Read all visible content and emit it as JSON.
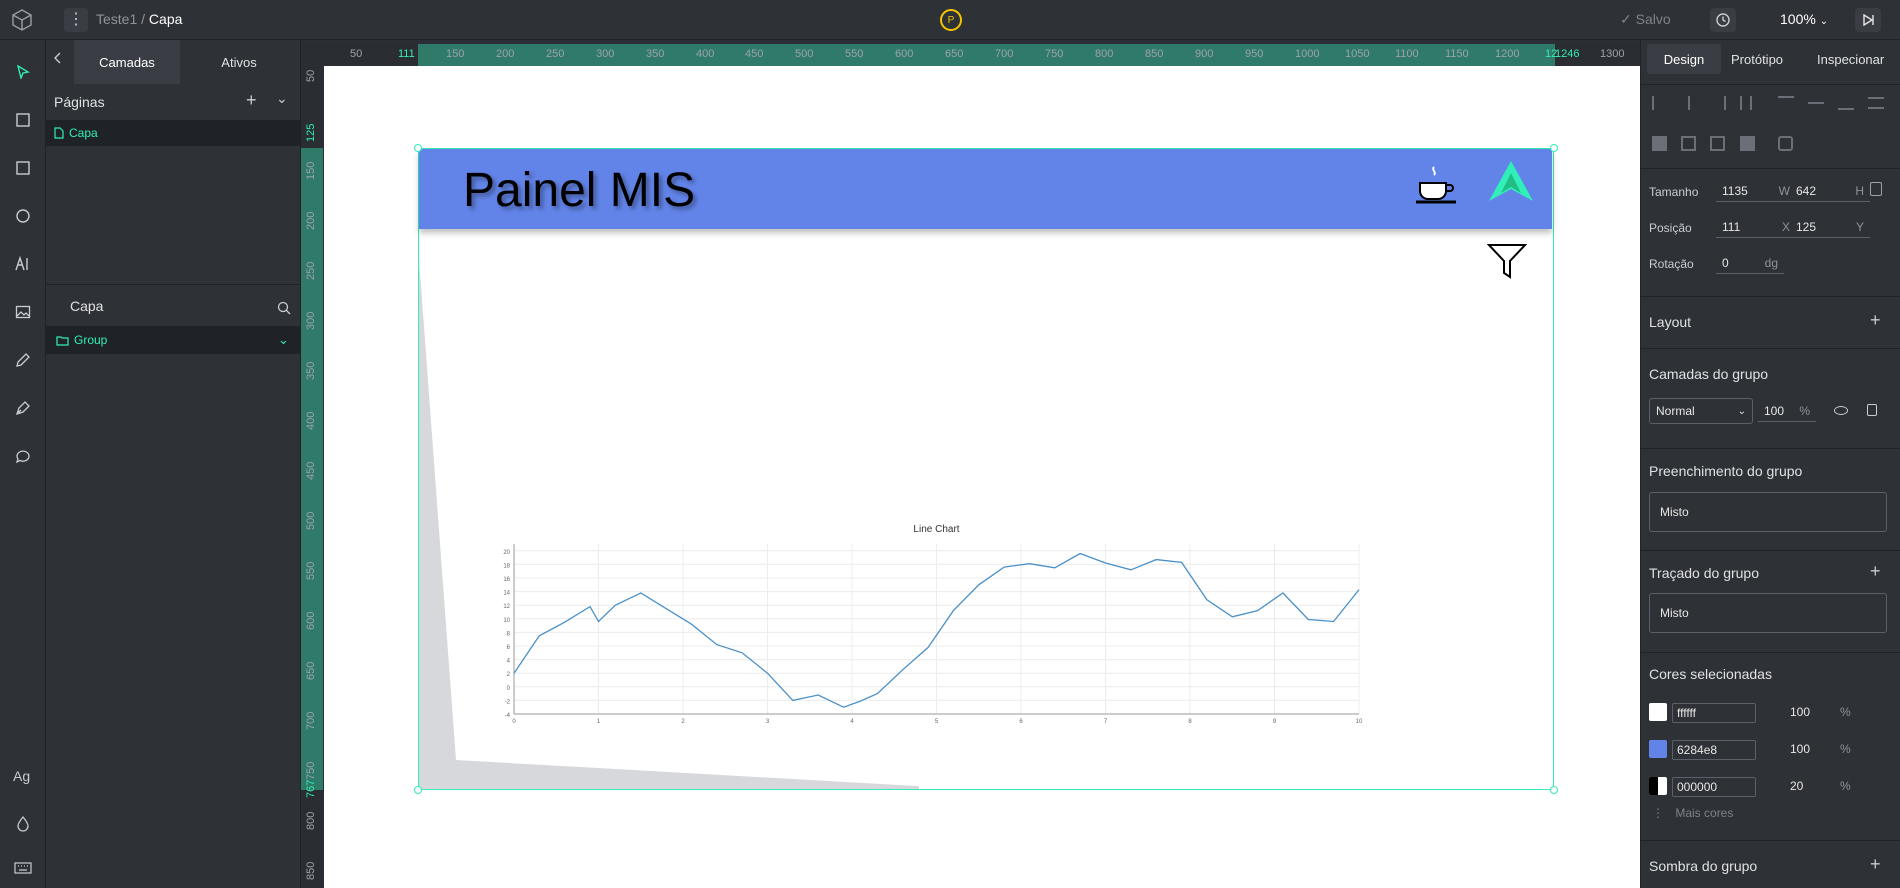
{
  "app": {
    "breadcrumb": {
      "project": "Teste1",
      "sep": "/",
      "page": "Capa"
    },
    "status": {
      "check": "✓",
      "saved": "Salvo"
    },
    "zoom": "100%",
    "avatar": "P"
  },
  "layers_panel": {
    "tabs": [
      "Camadas",
      "Ativos"
    ],
    "pages_title": "Páginas",
    "pages": [
      "Capa"
    ],
    "layers_title": "Capa",
    "layers": [
      "Group"
    ]
  },
  "rulers": {
    "h_ticks": [
      "50",
      "111",
      "150",
      "200",
      "250",
      "300",
      "350",
      "400",
      "450",
      "500",
      "550",
      "600",
      "650",
      "700",
      "750",
      "800",
      "850",
      "900",
      "950",
      "1000",
      "1050",
      "1100",
      "1150",
      "1200",
      "12",
      "1246",
      "1300"
    ],
    "v_ticks": [
      "50",
      "125",
      "150",
      "200",
      "250",
      "300",
      "350",
      "400",
      "450",
      "500",
      "550",
      "600",
      "650",
      "700",
      "750",
      "767",
      "800",
      "850"
    ]
  },
  "canvas": {
    "board_title": "Painel MIS",
    "header_color": "#6284e8",
    "chart_data": {
      "type": "line",
      "title": "Line Chart",
      "xlabel": "",
      "ylabel": "",
      "xlim": [
        0,
        10
      ],
      "ylim": [
        -4,
        21
      ],
      "x_ticks": [
        "0",
        "1",
        "2",
        "3",
        "4",
        "5",
        "6",
        "7",
        "8",
        "9",
        "10"
      ],
      "y_ticks": [
        "20",
        "18",
        "16",
        "14",
        "12",
        "10",
        "8",
        "6",
        "4",
        "2",
        "0",
        "-2",
        "-4"
      ],
      "grid": true,
      "series": [
        {
          "color": "#4a90c8",
          "x": [
            0,
            0.3,
            0.6,
            0.9,
            1.0,
            1.2,
            1.5,
            1.8,
            2.1,
            2.4,
            2.7,
            3.0,
            3.3,
            3.6,
            3.9,
            4.1,
            4.3,
            4.6,
            4.9,
            5.2,
            5.5,
            5.8,
            6.1,
            6.4,
            6.7,
            7.0,
            7.3,
            7.6,
            7.9,
            8.2,
            8.5,
            8.8,
            9.1,
            9.4,
            9.7,
            10.0
          ],
          "y": [
            2,
            7.5,
            9.5,
            11.8,
            9.6,
            12,
            13.8,
            11.5,
            9.2,
            6.2,
            5,
            2,
            -2,
            -1.2,
            -3,
            -2.1,
            -1,
            2.5,
            5.8,
            11.2,
            15,
            17.6,
            18.1,
            17.5,
            19.6,
            18.2,
            17.2,
            18.7,
            18.3,
            12.8,
            10.3,
            11.2,
            13.8,
            9.9,
            9.6,
            14.3
          ]
        }
      ]
    }
  },
  "design_panel": {
    "tabs": [
      "Design",
      "Protótipo",
      "Inspecionar"
    ],
    "size_label": "Tamanho",
    "width": "1135",
    "w_unit": "W",
    "height": "642",
    "h_unit": "H",
    "position_label": "Posição",
    "pos_x": "111",
    "x_unit": "X",
    "pos_y": "125",
    "y_unit": "Y",
    "rotation_label": "Rotação",
    "rotation": "0",
    "rot_unit": "dg",
    "layout_title": "Layout",
    "group_layers_title": "Camadas do grupo",
    "blend_mode": "Normal",
    "opacity": "100",
    "percent": "%",
    "fill_title": "Preenchimento do grupo",
    "fill_value": "Misto",
    "stroke_title": "Traçado do grupo",
    "stroke_value": "Misto",
    "colors_title": "Cores selecionadas",
    "colors": [
      {
        "hex": "ffffff",
        "swatch": "#ffffff",
        "opacity": "100"
      },
      {
        "hex": "6284e8",
        "swatch": "#6284e8",
        "opacity": "100"
      },
      {
        "hex": "000000",
        "swatch": "#000000",
        "opacity": "20"
      }
    ],
    "more_colors": "Mais cores",
    "shadow_title": "Sombra do grupo"
  },
  "leftbar": {
    "fonts_label": "Ag"
  }
}
